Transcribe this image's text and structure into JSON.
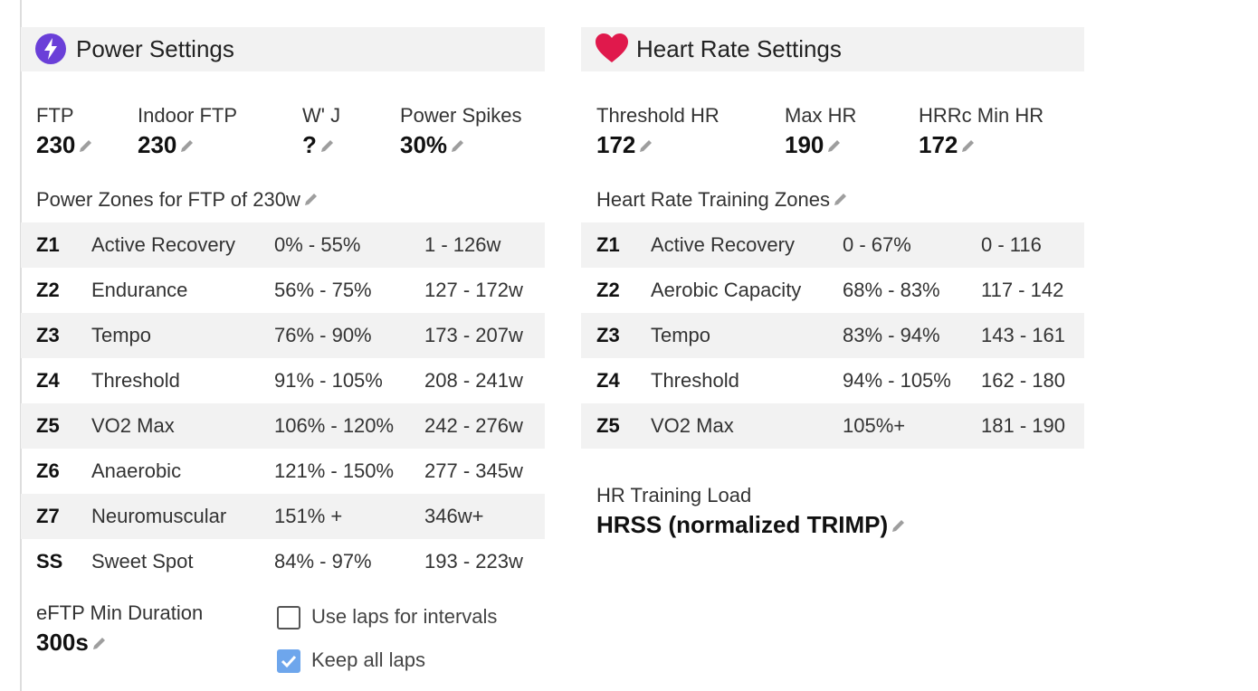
{
  "power": {
    "title": "Power Settings",
    "fields": [
      {
        "label": "FTP",
        "value": "230"
      },
      {
        "label": "Indoor FTP",
        "value": "230"
      },
      {
        "label": "W' J",
        "value": "?"
      },
      {
        "label": "Power Spikes",
        "value": "30%"
      }
    ],
    "zones_title": "Power Zones for FTP of 230w",
    "zones": [
      [
        "Z1",
        "Active Recovery",
        "0% - 55%",
        "1 - 126w"
      ],
      [
        "Z2",
        "Endurance",
        "56% - 75%",
        "127 - 172w"
      ],
      [
        "Z3",
        "Tempo",
        "76% - 90%",
        "173 - 207w"
      ],
      [
        "Z4",
        "Threshold",
        "91% - 105%",
        "208 - 241w"
      ],
      [
        "Z5",
        "VO2 Max",
        "106% - 120%",
        "242 - 276w"
      ],
      [
        "Z6",
        "Anaerobic",
        "121% - 150%",
        "277 - 345w"
      ],
      [
        "Z7",
        "Neuromuscular",
        "151% +",
        "346w+"
      ],
      [
        "SS",
        "Sweet Spot",
        "84% - 97%",
        "193 - 223w"
      ]
    ],
    "eftp": {
      "label": "eFTP Min Duration",
      "value": "300s"
    },
    "checkboxes": [
      {
        "label": "Use laps for intervals",
        "checked": false
      },
      {
        "label": "Keep all laps",
        "checked": true
      }
    ]
  },
  "heart": {
    "title": "Heart Rate Settings",
    "fields": [
      {
        "label": "Threshold HR",
        "value": "172"
      },
      {
        "label": "Max HR",
        "value": "190"
      },
      {
        "label": "HRRc Min HR",
        "value": "172"
      }
    ],
    "zones_title": "Heart Rate Training Zones",
    "zones": [
      [
        "Z1",
        "Active Recovery",
        "0 - 67%",
        "0 - 116"
      ],
      [
        "Z2",
        "Aerobic Capacity",
        "68% - 83%",
        "117 - 142"
      ],
      [
        "Z3",
        "Tempo",
        "83% - 94%",
        "143 - 161"
      ],
      [
        "Z4",
        "Threshold",
        "94% - 105%",
        "162 - 180"
      ],
      [
        "Z5",
        "VO2 Max",
        "105%+",
        "181 - 190"
      ]
    ],
    "load": {
      "label": "HR Training Load",
      "value": "HRSS (normalized TRIMP)"
    }
  }
}
